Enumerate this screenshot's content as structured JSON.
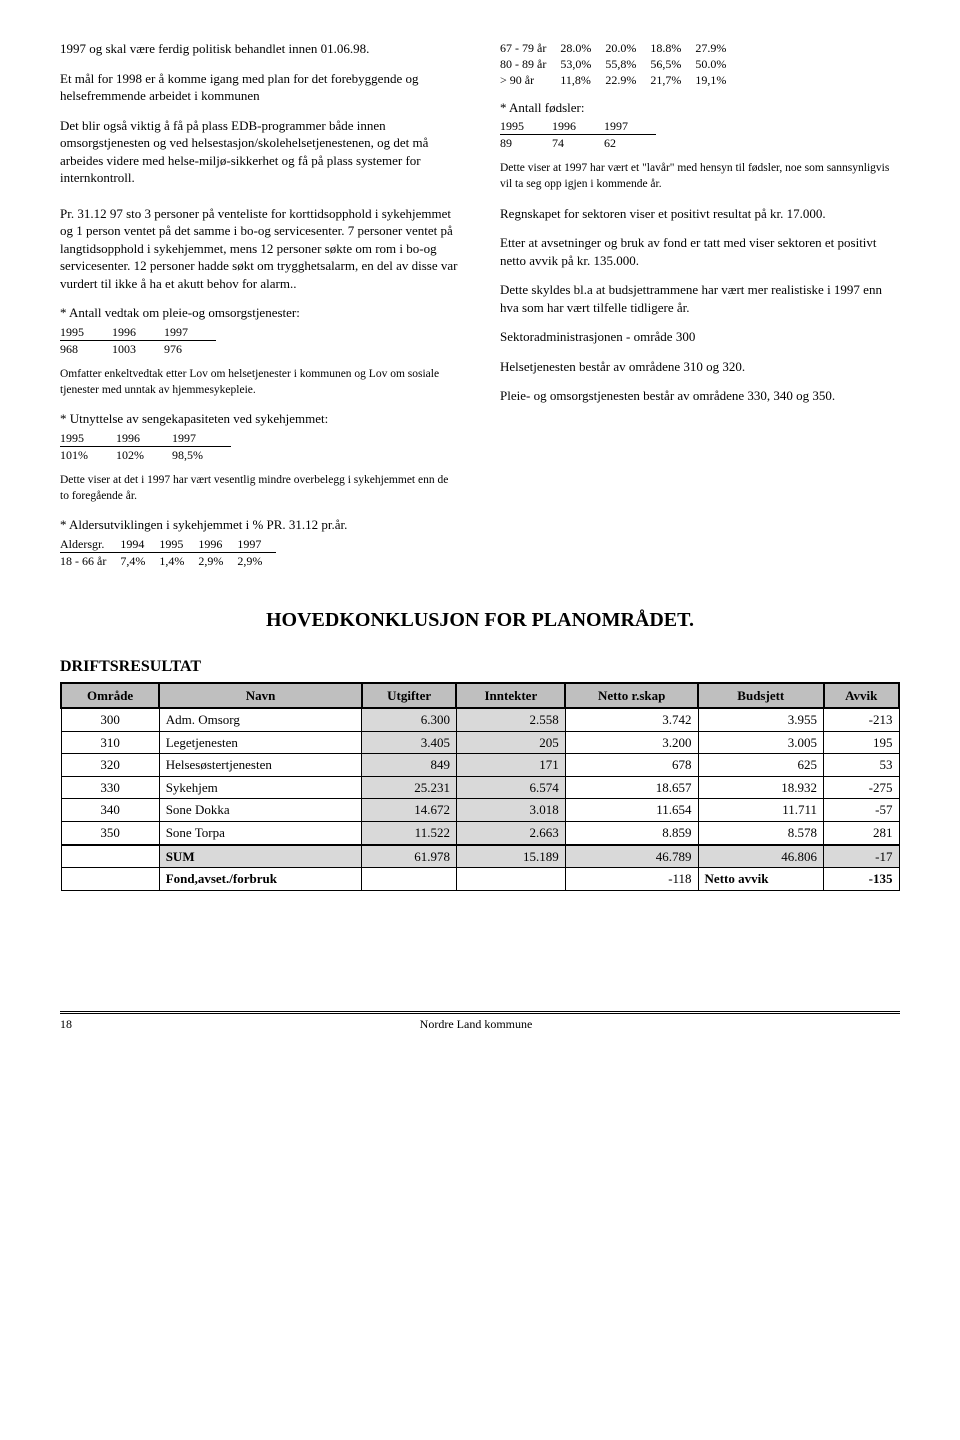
{
  "left": {
    "p1": "1997 og skal være ferdig politisk behandlet innen 01.06.98.",
    "p2": "Et mål for 1998 er å komme igang med plan for det forebyggende og helsefremmende arbeidet i kommunen",
    "p3": "Det blir også viktig å få på plass EDB-programmer både innen omsorgstjenesten og ved helsestasjon/skolehelsetjenestenen, og det må arbeides videre med helse-miljø-sikkerhet og få på plass systemer for internkontroll.",
    "p4": "Pr. 31.12 97 sto 3 personer på venteliste for korttidsopphold i sykehjemmet og 1 person ventet på det samme i bo-og servicesenter. 7 personer ventet på langtidsopphold i sykehjemmet, mens 12 personer søkte om rom i bo-og servicesenter. 12 personer hadde søkt om trygghetsalarm, en del av disse var vurdert til ikke å ha et akutt behov for alarm..",
    "vedtak_title": "* Antall vedtak om pleie-og omsorgstjenester:",
    "vedtak": {
      "h": [
        "1995",
        "1996",
        "1997"
      ],
      "r": [
        "968",
        "1003",
        "976"
      ]
    },
    "vedtak_note": "Omfatter enkeltvedtak etter Lov om helsetjenester i kommunen og Lov om sosiale tjenester med unntak av hjemmesykepleie.",
    "seng_title": "* Utnyttelse av sengekapasiteten ved sykehjemmet:",
    "seng": {
      "h": [
        "1995",
        "1996",
        "1997"
      ],
      "r": [
        "101%",
        "102%",
        "98,5%"
      ]
    },
    "seng_note": "Dette viser at det i 1997 har vært vesentlig mindre overbelegg i sykehjemmet enn de to foregående år.",
    "alder_title": "* Aldersutviklingen i sykehjemmet i % PR. 31.12 pr.år.",
    "alder": {
      "h": [
        "Aldersgr.",
        "1994",
        "1995",
        "1996",
        "1997"
      ],
      "r": [
        "18 - 66 år",
        "7,4%",
        "1,4%",
        "2,9%",
        "2,9%"
      ]
    }
  },
  "right": {
    "age_rows": [
      [
        "67 - 79 år",
        "28.0%",
        "20.0%",
        "18.8%",
        "27.9%"
      ],
      [
        "80 - 89 år",
        "53,0%",
        "55,8%",
        "56,5%",
        "50.0%"
      ],
      [
        "> 90 år",
        "11,8%",
        "22.9%",
        "21,7%",
        "19,1%"
      ]
    ],
    "fods_title": "* Antall fødsler:",
    "fods": {
      "h": [
        "1995",
        "1996",
        "1997"
      ],
      "r": [
        "89",
        "74",
        "62"
      ]
    },
    "fods_note": "Dette viser at 1997 har vært et \"lavår\" med hensyn til fødsler, noe som sannsynligvis vil ta seg opp igjen i kommende år.",
    "p1": "Regnskapet for sektoren viser et positivt resultat på kr. 17.000.",
    "p2": "Etter at avsetninger og bruk av fond er tatt med viser sektoren et positivt netto avvik på kr. 135.000.",
    "p3": "Dette skyldes bl.a at budsjettrammene har vært mer realistiske i 1997 enn hva som har vært tilfelle tidligere år.",
    "p4": "Sektoradministrasjonen - område 300",
    "p5": "Helsetjenesten består av områdene 310 og 320.",
    "p6": "Pleie- og omsorgstjenesten består av områdene 330, 340 og 350."
  },
  "heading": "HOVEDKONKLUSJON FOR PLANOMRÅDET.",
  "drift_label": "DRIFTSRESULTAT",
  "drift": {
    "headers": [
      "Område",
      "Navn",
      "Utgifter",
      "Inntekter",
      "Netto r.skap",
      "Budsjett",
      "Avvik"
    ],
    "rows": [
      [
        "300",
        "Adm. Omsorg",
        "6.300",
        "2.558",
        "3.742",
        "3.955",
        "-213"
      ],
      [
        "310",
        "Legetjenesten",
        "3.405",
        "205",
        "3.200",
        "3.005",
        "195"
      ],
      [
        "320",
        "Helsesøstertjenesten",
        "849",
        "171",
        "678",
        "625",
        "53"
      ],
      [
        "330",
        "Sykehjem",
        "25.231",
        "6.574",
        "18.657",
        "18.932",
        "-275"
      ],
      [
        "340",
        "Sone Dokka",
        "14.672",
        "3.018",
        "11.654",
        "11.711",
        "-57"
      ],
      [
        "350",
        "Sone Torpa",
        "11.522",
        "2.663",
        "8.859",
        "8.578",
        "281"
      ]
    ],
    "sum": [
      "",
      "SUM",
      "61.978",
      "15.189",
      "46.789",
      "46.806",
      "-17"
    ],
    "fond": [
      "",
      "Fond,avset./forbruk",
      "",
      "",
      "-118",
      "Netto avvik",
      "-135"
    ]
  },
  "footer": {
    "org": "Nordre Land kommune",
    "page": "18"
  }
}
